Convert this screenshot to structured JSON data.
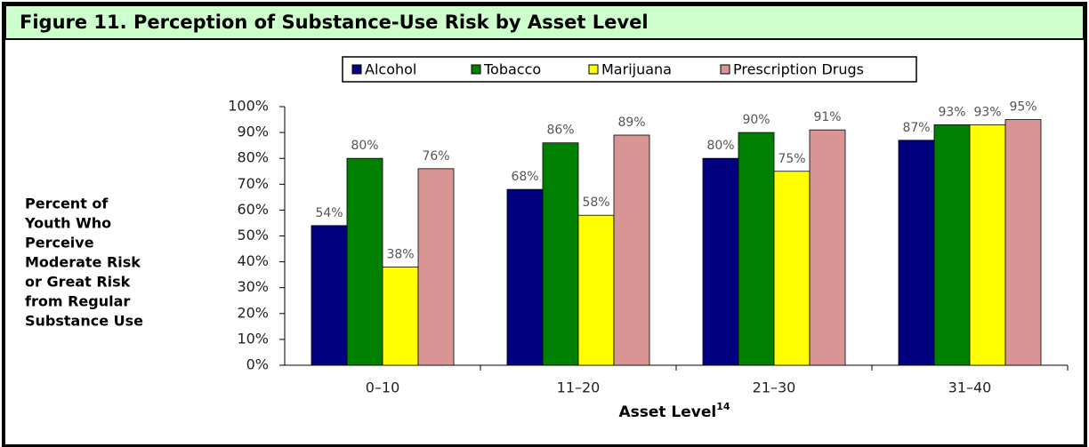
{
  "chart_data": {
    "type": "bar",
    "title": "Figure 11.  Perception of Substance-Use Risk by Asset Level",
    "y_label": [
      "Percent of",
      "Youth Who",
      "Perceive",
      "Moderate Risk",
      "or Great Risk",
      "from Regular",
      "Substance Use"
    ],
    "x_label": "Asset Level",
    "x_label_footnote": "14",
    "categories": [
      "0–10",
      "11–20",
      "21–30",
      "31–40"
    ],
    "series": [
      {
        "name": "Alcohol",
        "color": "#000080",
        "values": [
          54,
          68,
          80,
          87
        ],
        "value_labels": [
          "54%",
          "68%",
          "80%",
          "87%"
        ]
      },
      {
        "name": "Tobacco",
        "color": "#008000",
        "values": [
          80,
          86,
          90,
          93
        ],
        "value_labels": [
          "80%",
          "86%",
          "90%",
          "93%"
        ]
      },
      {
        "name": "Marijuana",
        "color": "#ffff00",
        "values": [
          38,
          58,
          75,
          93
        ],
        "value_labels": [
          "38%",
          "58%",
          "75%",
          "93%"
        ]
      },
      {
        "name": "Prescription Drugs",
        "color": "#d99594",
        "values": [
          76,
          89,
          91,
          95
        ],
        "value_labels": [
          "76%",
          "89%",
          "91%",
          "95%"
        ]
      }
    ],
    "ylim": [
      0,
      100
    ],
    "yticks": [
      {
        "value": 0,
        "label": "0%"
      },
      {
        "value": 10,
        "label": "10%"
      },
      {
        "value": 20,
        "label": "20%"
      },
      {
        "value": 30,
        "label": "30%"
      },
      {
        "value": 40,
        "label": "40%"
      },
      {
        "value": 50,
        "label": "50%"
      },
      {
        "value": 60,
        "label": "60%"
      },
      {
        "value": 70,
        "label": "70%"
      },
      {
        "value": 80,
        "label": "80%"
      },
      {
        "value": 90,
        "label": "90%"
      },
      {
        "value": 100,
        "label": "100%"
      }
    ],
    "legend": "top"
  }
}
